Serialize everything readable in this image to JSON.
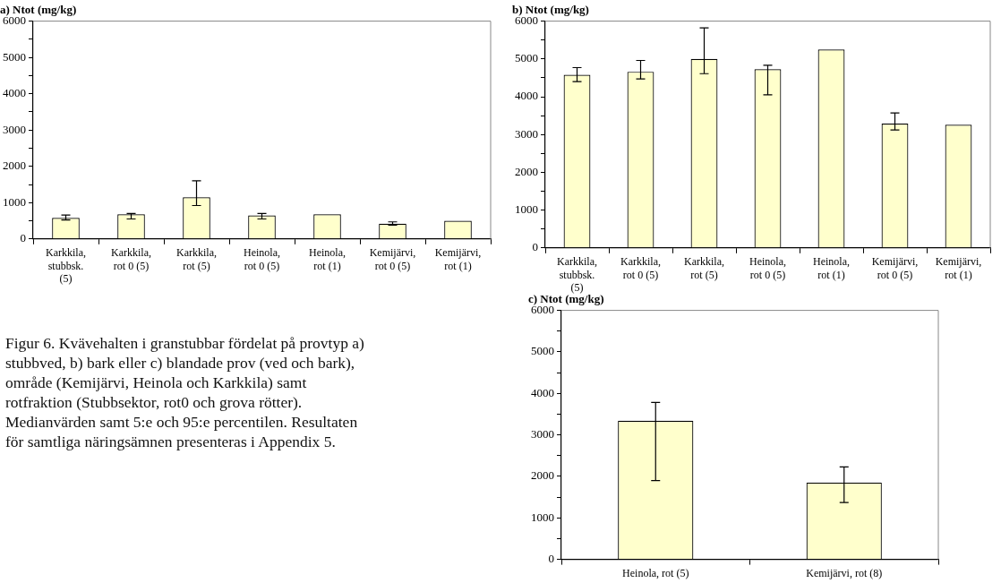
{
  "chart_data": [
    {
      "type": "bar",
      "title": "a) Ntot (mg/kg)",
      "categories": [
        "Karkkila, stubbsk. (5)",
        "Karkkila, rot 0 (5)",
        "Karkkila, rot (5)",
        "Heinola, rot 0 (5)",
        "Heinola, rot (1)",
        "Kemijärvi, rot 0 (5)",
        "Kemijärvi, rot (1)"
      ],
      "values": [
        580,
        680,
        1150,
        650,
        680,
        420,
        500
      ],
      "color": "#ffffcc",
      "errors": [
        [
          520,
          660
        ],
        [
          550,
          700
        ],
        [
          920,
          1600
        ],
        [
          550,
          700
        ],
        null,
        [
          380,
          470
        ],
        null
      ],
      "ylim": [
        0,
        6000
      ],
      "yticks": [
        0,
        {
          "value": 500,
          "label": null
        },
        1000,
        {
          "value": 1500,
          "label": null
        },
        2000,
        {
          "value": 2500,
          "label": null
        },
        3000,
        {
          "value": 3500,
          "label": null
        },
        4000,
        {
          "value": 4500,
          "label": null
        },
        5000,
        {
          "value": 5500,
          "label": null
        },
        6000
      ],
      "legend": false
    },
    {
      "type": "bar",
      "title": "b) Ntot (mg/kg)",
      "categories": [
        "Karkkila, stubbsk. (5)",
        "Karkkila, rot 0 (5)",
        "Karkkila, rot (5)",
        "Heinola, rot 0 (5)",
        "Heinola, rot (1)",
        "Kemijärvi, rot 0 (5)",
        "Kemijärvi, rot (1)"
      ],
      "values": [
        4580,
        4660,
        5000,
        4730,
        5250,
        3290,
        3260
      ],
      "color": "#ffffcc",
      "errors": [
        [
          4400,
          4770
        ],
        [
          4470,
          4960
        ],
        [
          4610,
          5820
        ],
        [
          4050,
          4830
        ],
        null,
        [
          3120,
          3570
        ],
        null
      ],
      "ylim": [
        0,
        6000
      ],
      "yticks": [
        0,
        {
          "value": 500,
          "label": null
        },
        1000,
        {
          "value": 1500,
          "label": null
        },
        2000,
        {
          "value": 2500,
          "label": null
        },
        3000,
        {
          "value": 3500,
          "label": null
        },
        4000,
        {
          "value": 4500,
          "label": null
        },
        5000,
        {
          "value": 5500,
          "label": null
        },
        6000
      ],
      "legend": false
    },
    {
      "type": "bar",
      "title": "c) Ntot (mg/kg)",
      "categories": [
        "Heinola, rot (5)",
        "Kemijärvi, rot (8)"
      ],
      "values": [
        3340,
        1850
      ],
      "color": "#ffffcc",
      "errors": [
        [
          1900,
          3780
        ],
        [
          1370,
          2230
        ]
      ],
      "ylim": [
        0,
        6000
      ],
      "yticks": [
        0,
        {
          "value": 500,
          "label": null
        },
        1000,
        {
          "value": 1500,
          "label": null
        },
        2000,
        {
          "value": 2500,
          "label": null
        },
        3000,
        {
          "value": 3500,
          "label": null
        },
        4000,
        {
          "value": 4500,
          "label": null
        },
        5000,
        {
          "value": 5500,
          "label": null
        },
        6000
      ],
      "legend": false
    },
    {
      "type": "other",
      "annotations": [
        "Figur 6. Kvävehalten i granstubbar fördelat på provtyp a) stubbved, b) bark eller c) blandade prov (ved och bark), område (Kemijärvi, Heinola och Karkkila) samt rotfraktion (Stubbsektor, rot0 och grova rötter). Medianvärden samt 5:e och 95:e percentilen. Resultaten för samtliga näringsämnen presenteras i Appendix 5."
      ]
    }
  ]
}
